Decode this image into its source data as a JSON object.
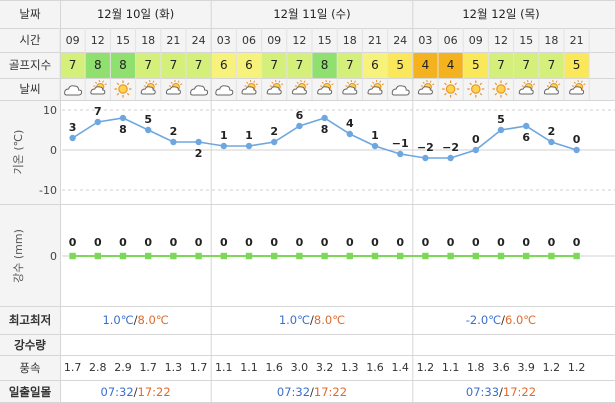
{
  "labels": {
    "date": "날짜",
    "time": "시간",
    "golf_index": "골프지수",
    "weather": "날씨",
    "temperature": "기온 (℃)",
    "precipitation": "강수 (mm)",
    "min_max": "최고최저",
    "rain_amount": "강수량",
    "wind_speed": "풍속",
    "sunrise_sunset": "일출일몰"
  },
  "days": [
    {
      "label": "12월 10일 (화)",
      "min": "1.0℃",
      "max": "8.0℃",
      "sunrise": "07:32",
      "sunset": "17:22",
      "sep": "/"
    },
    {
      "label": "12월 11일 (수)",
      "min": "1.0℃",
      "max": "8.0℃",
      "sunrise": "07:32",
      "sunset": "17:22",
      "sep": "/"
    },
    {
      "label": "12월 12일 (목)",
      "min": "-2.0℃",
      "max": "6.0℃",
      "sunrise": "07:33",
      "sunset": "17:22",
      "sep": "/"
    }
  ],
  "hours": [
    "09",
    "12",
    "15",
    "18",
    "21",
    "24",
    "03",
    "06",
    "09",
    "12",
    "15",
    "18",
    "21",
    "24",
    "03",
    "06",
    "09",
    "12",
    "15",
    "18",
    "21"
  ],
  "golf_index": [
    7,
    8,
    8,
    7,
    7,
    7,
    6,
    6,
    7,
    7,
    8,
    7,
    6,
    5,
    4,
    4,
    5,
    7,
    7,
    7,
    5
  ],
  "weather_icons": [
    "cloudy-icon",
    "sun-cloud-icon",
    "sun-icon",
    "sun-cloud-icon",
    "sun-cloud-icon",
    "cloudy-icon",
    "cloudy-icon",
    "sun-cloud-icon",
    "sun-cloud-icon",
    "sun-cloud-icon",
    "sun-cloud-icon",
    "sun-cloud-icon",
    "sun-cloud-icon",
    "cloudy-icon",
    "sun-cloud-icon",
    "sun-icon",
    "sun-icon",
    "sun-icon",
    "sun-cloud-icon",
    "sun-cloud-icon",
    "sun-cloud-icon"
  ],
  "wind_speed": [
    "1.7",
    "2.8",
    "2.9",
    "1.7",
    "1.3",
    "1.7",
    "1.1",
    "1.1",
    "1.6",
    "3.0",
    "3.2",
    "1.3",
    "1.6",
    "1.4",
    "1.2",
    "1.1",
    "1.8",
    "3.6",
    "3.9",
    "1.2",
    "1.2"
  ],
  "colors": {
    "golf_8": "#8fe06f",
    "golf_7": "#d4f07a",
    "golf_6": "#f6f27c",
    "golf_5": "#fbe85a",
    "golf_4": "#f5b21f",
    "temp_line": "#6ea7e0",
    "precip_line": "#7ed858",
    "header_bg": "#f4f4f4",
    "min_color": "#3a6fd0",
    "max_color": "#e06a2a"
  },
  "chart_data": [
    {
      "type": "line",
      "ylabel": "기온 (℃)",
      "ylim": [
        -10,
        10
      ],
      "yticks": [
        10,
        0,
        -10
      ],
      "x": [
        "09",
        "12",
        "15",
        "18",
        "21",
        "24",
        "03",
        "06",
        "09",
        "12",
        "15",
        "18",
        "21",
        "24",
        "03",
        "06",
        "09",
        "12",
        "15",
        "18",
        "21"
      ],
      "series": [
        {
          "values": [
            3,
            7,
            8,
            5,
            2,
            2,
            1,
            1,
            2,
            6,
            8,
            4,
            1,
            -1,
            -2,
            -2,
            0,
            5,
            6,
            2,
            0
          ]
        }
      ],
      "grid": true
    },
    {
      "type": "line",
      "ylabel": "강수 (mm)",
      "yticks": [
        0
      ],
      "x": [
        "09",
        "12",
        "15",
        "18",
        "21",
        "24",
        "03",
        "06",
        "09",
        "12",
        "15",
        "18",
        "21",
        "24",
        "03",
        "06",
        "09",
        "12",
        "15",
        "18",
        "21"
      ],
      "series": [
        {
          "values": [
            0,
            0,
            0,
            0,
            0,
            0,
            0,
            0,
            0,
            0,
            0,
            0,
            0,
            0,
            0,
            0,
            0,
            0,
            0,
            0,
            0
          ]
        }
      ],
      "grid": true
    }
  ]
}
